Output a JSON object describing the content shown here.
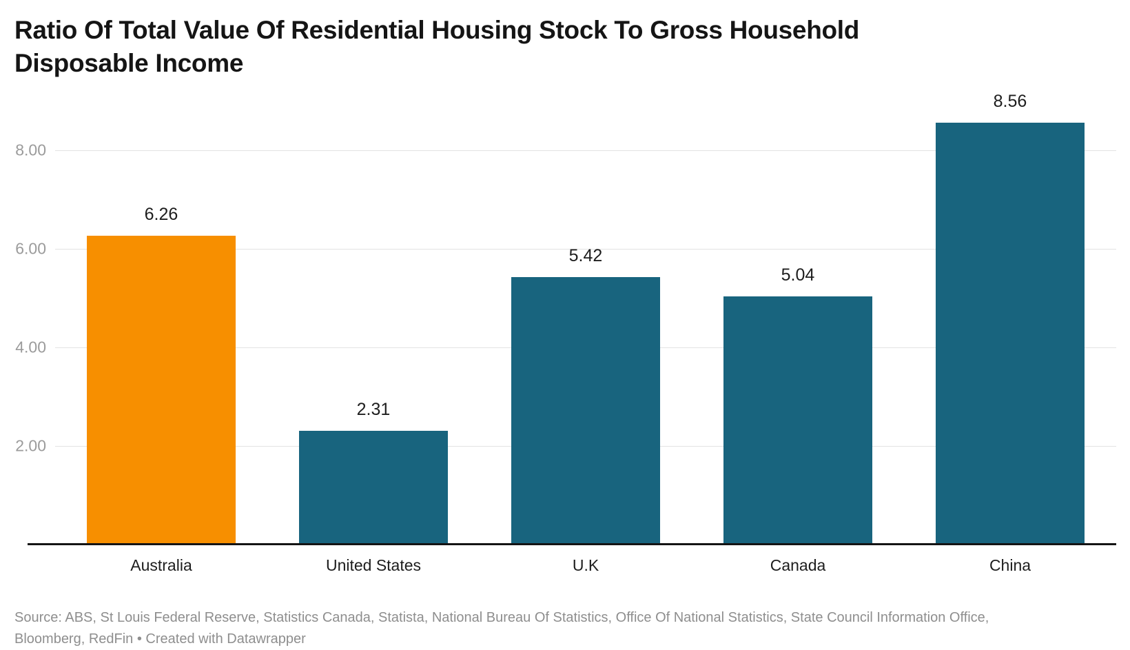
{
  "header": {
    "title": "Ratio Of Total Value Of Residential Housing Stock To Gross Household Disposable Income"
  },
  "chart_data": {
    "type": "bar",
    "title": "Ratio Of Total Value Of Residential Housing Stock To Gross Household Disposable Income",
    "categories": [
      "Australia",
      "United States",
      "U.K",
      "Canada",
      "China"
    ],
    "values": [
      6.26,
      2.31,
      5.42,
      5.04,
      8.56
    ],
    "value_labels": [
      "6.26",
      "2.31",
      "5.42",
      "5.04",
      "8.56"
    ],
    "bar_colors": [
      "#F78F00",
      "#18647E",
      "#18647E",
      "#18647E",
      "#18647E"
    ],
    "highlight_color": "#F78F00",
    "base_color": "#18647E",
    "xlabel": "",
    "ylabel": "",
    "ylim": [
      0,
      9.09
    ],
    "yticks": [
      {
        "value": 2,
        "label": "2.00"
      },
      {
        "value": 4,
        "label": "4.00"
      },
      {
        "value": 6,
        "label": "6.00"
      },
      {
        "value": 8,
        "label": "8.00"
      }
    ],
    "grid": true,
    "legend_position": "none"
  },
  "footer": {
    "line1": "Source: ABS, St Louis Federal Reserve, Statistics Canada, Statista, National Bureau Of Statistics, Office Of National Statistics, State Council Information Office,",
    "line2": "Bloomberg, RedFin • Created with Datawrapper"
  }
}
